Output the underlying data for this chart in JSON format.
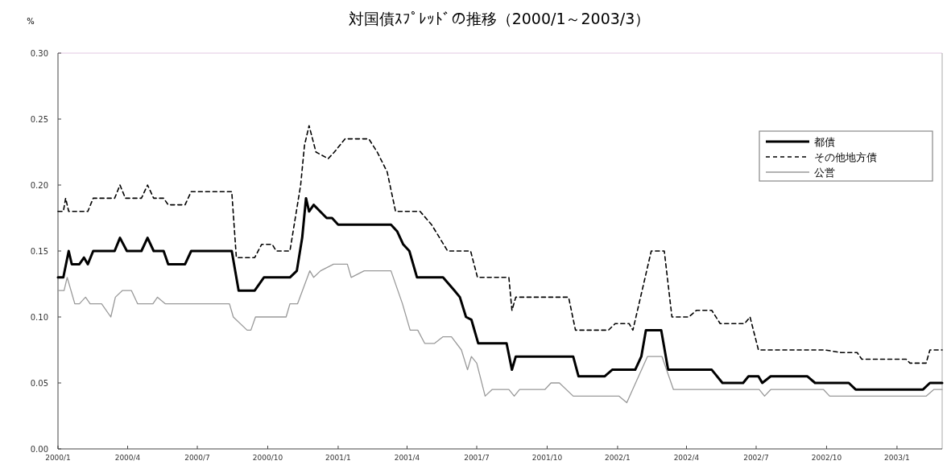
{
  "chart_data": {
    "type": "line",
    "title": "対国債ｽﾌﾟﾚｯﾄﾞの推移（2000/1～2003/3）",
    "ylabel": "%",
    "xlim": [
      "2000-01-01",
      "2003-03-01"
    ],
    "xticks": [
      {
        "value": "2000-01",
        "label": "2000/1"
      },
      {
        "value": "2000-04",
        "label": "2000/4"
      },
      {
        "value": "2000-07",
        "label": "2000/7"
      },
      {
        "value": "2000-10",
        "label": "2000/10"
      },
      {
        "value": "2001-01",
        "label": "2001/1"
      },
      {
        "value": "2001-04",
        "label": "2001/4"
      },
      {
        "value": "2001-07",
        "label": "2001/7"
      },
      {
        "value": "2001-10",
        "label": "2001/10"
      },
      {
        "value": "2002-01",
        "label": "2002/1"
      },
      {
        "value": "2002-04",
        "label": "2002/4"
      },
      {
        "value": "2002-07",
        "label": "2002/7"
      },
      {
        "value": "2002-10",
        "label": "2002/10"
      },
      {
        "value": "2003-01",
        "label": "2003/1"
      }
    ],
    "ylim": [
      0,
      0.3
    ],
    "yticks": [
      {
        "value": 0,
        "label": "0.00"
      },
      {
        "value": 0.05,
        "label": "0.05"
      },
      {
        "value": 0.1,
        "label": "0.10"
      },
      {
        "value": 0.15,
        "label": "0.15"
      },
      {
        "value": 0.2,
        "label": "0.20"
      },
      {
        "value": 0.25,
        "label": "0.25"
      },
      {
        "value": 0.3,
        "label": "0.30"
      }
    ],
    "grid": false,
    "legend": "right",
    "marker": "none",
    "series": [
      {
        "name": "都債",
        "color": "#000000",
        "line_style": "solid",
        "x": [
          "2000-01-01",
          "2000-01-08",
          "2000-01-15",
          "2000-01-19",
          "2000-01-29",
          "2000-02-04",
          "2000-02-09",
          "2000-02-16",
          "2000-03-15",
          "2000-03-22",
          "2000-03-31",
          "2000-04-19",
          "2000-04-27",
          "2000-05-05",
          "2000-05-18",
          "2000-05-24",
          "2000-06-15",
          "2000-06-23",
          "2000-08-15",
          "2000-08-24",
          "2000-09-14",
          "2000-09-26",
          "2000-10-30",
          "2000-11-08",
          "2000-11-15",
          "2000-11-20",
          "2000-11-24",
          "2000-11-30",
          "2000-12-17",
          "2000-12-24",
          "2001-01-01",
          "2001-03-11",
          "2001-03-19",
          "2001-03-27",
          "2001-04-04",
          "2001-04-14",
          "2001-05-18",
          "2001-06-02",
          "2001-06-09",
          "2001-06-17",
          "2001-06-24",
          "2001-07-03",
          "2001-08-09",
          "2001-08-16",
          "2001-08-21",
          "2001-11-04",
          "2001-11-11",
          "2001-12-15",
          "2001-12-25",
          "2002-01-24",
          "2002-02-01",
          "2002-02-07",
          "2002-02-27",
          "2002-03-08",
          "2002-05-04",
          "2002-05-18",
          "2002-06-14",
          "2002-06-21",
          "2002-07-04",
          "2002-07-09",
          "2002-07-20",
          "2002-09-06",
          "2002-09-16",
          "2002-10-30",
          "2002-11-08",
          "2003-02-04",
          "2003-02-13",
          "2003-03-01"
        ],
        "values": [
          0.13,
          0.13,
          0.15,
          0.14,
          0.14,
          0.145,
          0.14,
          0.15,
          0.15,
          0.16,
          0.15,
          0.15,
          0.16,
          0.15,
          0.15,
          0.14,
          0.14,
          0.15,
          0.15,
          0.12,
          0.12,
          0.13,
          0.13,
          0.135,
          0.16,
          0.19,
          0.18,
          0.185,
          0.175,
          0.175,
          0.17,
          0.17,
          0.165,
          0.155,
          0.15,
          0.13,
          0.13,
          0.12,
          0.115,
          0.1,
          0.098,
          0.08,
          0.08,
          0.06,
          0.07,
          0.07,
          0.055,
          0.055,
          0.06,
          0.06,
          0.07,
          0.09,
          0.09,
          0.06,
          0.06,
          0.05,
          0.05,
          0.055,
          0.055,
          0.05,
          0.055,
          0.055,
          0.05,
          0.05,
          0.045,
          0.045,
          0.05,
          0.05
        ]
      },
      {
        "name": "その他地方債",
        "color": "#000000",
        "line_style": "dashed",
        "x": [
          "2000-01-01",
          "2000-01-08",
          "2000-01-11",
          "2000-01-15",
          "2000-02-09",
          "2000-02-16",
          "2000-03-15",
          "2000-03-22",
          "2000-03-29",
          "2000-04-19",
          "2000-04-27",
          "2000-05-05",
          "2000-05-18",
          "2000-05-24",
          "2000-06-15",
          "2000-06-23",
          "2000-08-15",
          "2000-08-21",
          "2000-09-14",
          "2000-09-23",
          "2000-10-07",
          "2000-10-12",
          "2000-10-30",
          "2000-11-13",
          "2000-11-18",
          "2000-11-24",
          "2000-12-03",
          "2000-12-19",
          "2000-12-27",
          "2001-01-10",
          "2001-02-10",
          "2001-02-21",
          "2001-03-06",
          "2001-03-17",
          "2001-04-18",
          "2001-05-03",
          "2001-05-24",
          "2001-06-23",
          "2001-07-02",
          "2001-08-12",
          "2001-08-16",
          "2001-08-21",
          "2001-10-29",
          "2001-11-07",
          "2001-12-20",
          "2001-12-29",
          "2002-01-16",
          "2002-01-21",
          "2002-02-14",
          "2002-03-03",
          "2002-03-13",
          "2002-04-04",
          "2002-04-14",
          "2002-05-04",
          "2002-05-15",
          "2002-06-16",
          "2002-06-23",
          "2002-07-04",
          "2002-09-29",
          "2002-10-20",
          "2002-11-10",
          "2002-11-16",
          "2003-01-13",
          "2003-01-18",
          "2003-02-08",
          "2003-02-13",
          "2003-03-01"
        ],
        "values": [
          0.18,
          0.18,
          0.19,
          0.18,
          0.18,
          0.19,
          0.19,
          0.2,
          0.19,
          0.19,
          0.2,
          0.19,
          0.19,
          0.185,
          0.185,
          0.195,
          0.195,
          0.145,
          0.145,
          0.155,
          0.155,
          0.15,
          0.15,
          0.2,
          0.23,
          0.245,
          0.225,
          0.22,
          0.225,
          0.235,
          0.235,
          0.225,
          0.21,
          0.18,
          0.18,
          0.17,
          0.15,
          0.15,
          0.13,
          0.13,
          0.105,
          0.115,
          0.115,
          0.09,
          0.09,
          0.095,
          0.095,
          0.09,
          0.15,
          0.15,
          0.1,
          0.1,
          0.105,
          0.105,
          0.095,
          0.095,
          0.1,
          0.075,
          0.075,
          0.073,
          0.073,
          0.068,
          0.068,
          0.065,
          0.065,
          0.075,
          0.075
        ]
      },
      {
        "name": "公営",
        "color": "#999999",
        "line_style": "solid",
        "x": [
          "2000-01-01",
          "2000-01-09",
          "2000-01-13",
          "2000-01-23",
          "2000-01-29",
          "2000-02-06",
          "2000-02-12",
          "2000-02-27",
          "2000-03-10",
          "2000-03-16",
          "2000-03-25",
          "2000-04-06",
          "2000-04-14",
          "2000-05-04",
          "2000-05-10",
          "2000-05-20",
          "2000-08-12",
          "2000-08-17",
          "2000-09-04",
          "2000-09-09",
          "2000-09-15",
          "2000-10-25",
          "2000-10-30",
          "2000-11-09",
          "2000-11-25",
          "2000-11-30",
          "2000-12-09",
          "2000-12-26",
          "2001-01-13",
          "2001-01-18",
          "2001-02-04",
          "2001-03-11",
          "2001-03-26",
          "2001-04-05",
          "2001-04-15",
          "2001-04-24",
          "2001-05-07",
          "2001-05-18",
          "2001-05-29",
          "2001-06-11",
          "2001-06-19",
          "2001-06-24",
          "2001-07-01",
          "2001-07-12",
          "2001-07-21",
          "2001-08-12",
          "2001-08-19",
          "2001-08-26",
          "2001-09-28",
          "2001-10-06",
          "2001-10-17",
          "2001-11-04",
          "2002-01-03",
          "2002-01-13",
          "2002-02-09",
          "2002-02-28",
          "2002-03-15",
          "2002-07-05",
          "2002-07-12",
          "2002-07-20",
          "2002-09-27",
          "2002-10-05",
          "2003-02-08",
          "2003-02-18",
          "2003-03-01"
        ],
        "values": [
          0.12,
          0.12,
          0.13,
          0.11,
          0.11,
          0.115,
          0.11,
          0.11,
          0.1,
          0.115,
          0.12,
          0.12,
          0.11,
          0.11,
          0.115,
          0.11,
          0.11,
          0.1,
          0.09,
          0.09,
          0.1,
          0.1,
          0.11,
          0.11,
          0.135,
          0.13,
          0.135,
          0.14,
          0.14,
          0.13,
          0.135,
          0.135,
          0.11,
          0.09,
          0.09,
          0.08,
          0.08,
          0.085,
          0.085,
          0.075,
          0.06,
          0.07,
          0.065,
          0.04,
          0.045,
          0.045,
          0.04,
          0.045,
          0.045,
          0.05,
          0.05,
          0.04,
          0.04,
          0.035,
          0.07,
          0.07,
          0.045,
          0.045,
          0.04,
          0.045,
          0.045,
          0.04,
          0.04,
          0.045,
          0.045
        ]
      }
    ]
  }
}
